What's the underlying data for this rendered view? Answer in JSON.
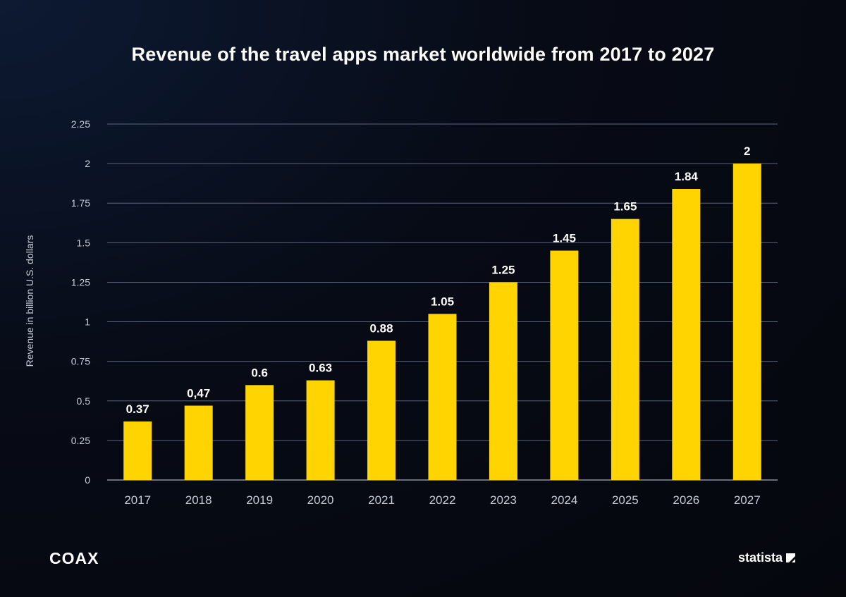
{
  "chart_data": {
    "type": "bar",
    "title": "Revenue of the travel apps market worldwide from 2017 to 2027",
    "xlabel": "",
    "ylabel": "Revenue in billion U.S. dollars",
    "categories": [
      "2017",
      "2018",
      "2019",
      "2020",
      "2021",
      "2022",
      "2023",
      "2024",
      "2025",
      "2026",
      "2027"
    ],
    "values": [
      0.37,
      0.47,
      0.6,
      0.63,
      0.88,
      1.05,
      1.25,
      1.45,
      1.65,
      1.84,
      2
    ],
    "data_labels": [
      "0.37",
      "0,47",
      "0.6",
      "0.63",
      "0.88",
      "1.05",
      "1.25",
      "1.45",
      "1.65",
      "1.84",
      "2"
    ],
    "ylim": [
      0,
      2.25
    ],
    "yticks": [
      "0",
      "0.25",
      "0.5",
      "0.75",
      "1",
      "1.25",
      "1.5",
      "1.75",
      "2",
      "2.25"
    ],
    "grid": true,
    "bar_color": "#ffd400",
    "grid_color": "#5c6478"
  },
  "branding": {
    "left_logo": "COAX",
    "right_logo": "statista"
  }
}
